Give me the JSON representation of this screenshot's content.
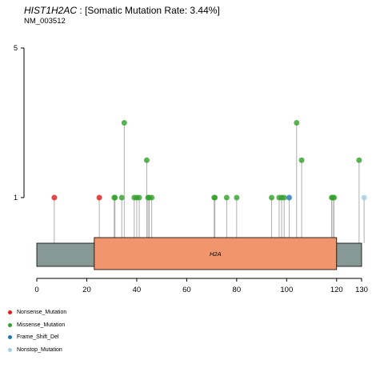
{
  "header": {
    "gene": "HIST1H2AC",
    "rate_text": " : [Somatic Mutation Rate: 3.44%]",
    "transcript": "NM_003512"
  },
  "colors": {
    "Nonsense_Mutation": "#e31a1c",
    "Missense_Mutation": "#33a02c",
    "Frame_Shift_Del": "#1f78b4",
    "Nonstop_Mutation": "#a6cee3",
    "protein_body": "#879995",
    "domain_fill": "#f0956d"
  },
  "legend": [
    {
      "label": "Nonsense_Mutation",
      "color": "#e31a1c"
    },
    {
      "label": "Missense_Mutation",
      "color": "#33a02c"
    },
    {
      "label": "Frame_Shift_Del",
      "color": "#1f78b4"
    },
    {
      "label": "Nonstop_Mutation",
      "color": "#a6cee3"
    }
  ],
  "chart_data": {
    "type": "lollipop",
    "y_tick_labels": [
      "1",
      "5"
    ],
    "y_ticks": [
      1,
      5
    ],
    "x_ticks": [
      0,
      20,
      40,
      60,
      80,
      100,
      120,
      130
    ],
    "protein_length": 130,
    "domains": [
      {
        "name": "H2A",
        "start": 23,
        "end": 120
      }
    ],
    "mutations": [
      {
        "pos": 7,
        "count": 1,
        "type": "Nonsense_Mutation"
      },
      {
        "pos": 25,
        "count": 1,
        "type": "Nonsense_Mutation"
      },
      {
        "pos": 31,
        "count": 1,
        "type": "Missense_Mutation"
      },
      {
        "pos": 31.3,
        "count": 1,
        "type": "Missense_Mutation"
      },
      {
        "pos": 34,
        "count": 1,
        "type": "Missense_Mutation"
      },
      {
        "pos": 35,
        "count": 3,
        "type": "Missense_Mutation"
      },
      {
        "pos": 39,
        "count": 1,
        "type": "Missense_Mutation"
      },
      {
        "pos": 40,
        "count": 1,
        "type": "Missense_Mutation"
      },
      {
        "pos": 41,
        "count": 1,
        "type": "Missense_Mutation"
      },
      {
        "pos": 44,
        "count": 2,
        "type": "Missense_Mutation"
      },
      {
        "pos": 44.5,
        "count": 1,
        "type": "Missense_Mutation"
      },
      {
        "pos": 45,
        "count": 1,
        "type": "Missense_Mutation"
      },
      {
        "pos": 46,
        "count": 1,
        "type": "Missense_Mutation"
      },
      {
        "pos": 71,
        "count": 1,
        "type": "Missense_Mutation"
      },
      {
        "pos": 71.3,
        "count": 1,
        "type": "Missense_Mutation"
      },
      {
        "pos": 76,
        "count": 1,
        "type": "Missense_Mutation"
      },
      {
        "pos": 80,
        "count": 1,
        "type": "Missense_Mutation"
      },
      {
        "pos": 94,
        "count": 1,
        "type": "Missense_Mutation"
      },
      {
        "pos": 97,
        "count": 1,
        "type": "Missense_Mutation"
      },
      {
        "pos": 98,
        "count": 1,
        "type": "Missense_Mutation"
      },
      {
        "pos": 99,
        "count": 1,
        "type": "Missense_Mutation"
      },
      {
        "pos": 101,
        "count": 1,
        "type": "Frame_Shift_Del"
      },
      {
        "pos": 104,
        "count": 3,
        "type": "Missense_Mutation"
      },
      {
        "pos": 106,
        "count": 2,
        "type": "Missense_Mutation"
      },
      {
        "pos": 118,
        "count": 1,
        "type": "Missense_Mutation"
      },
      {
        "pos": 118.5,
        "count": 1,
        "type": "Missense_Mutation"
      },
      {
        "pos": 119,
        "count": 1,
        "type": "Missense_Mutation"
      },
      {
        "pos": 129,
        "count": 2,
        "type": "Missense_Mutation"
      },
      {
        "pos": 131,
        "count": 1,
        "type": "Nonstop_Mutation"
      }
    ]
  }
}
